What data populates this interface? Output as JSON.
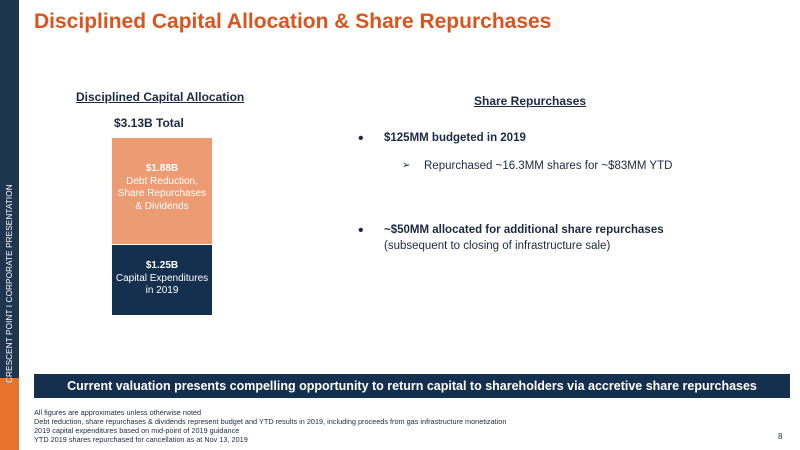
{
  "sidebar": {
    "text": "CRESCENT POINT   I   CORPORATE PRESENTATION",
    "colors": {
      "navy": "#1e3550",
      "orange": "#e8722a"
    }
  },
  "title": "Disciplined Capital Allocation & Share Repurchases",
  "left": {
    "heading": "Disciplined Capital Allocation",
    "total": "$3.13B Total",
    "bar_top": {
      "amount": "$1.88B",
      "line1": "Debt Reduction,",
      "line2": "Share Repurchases",
      "line3": "& Dividends",
      "color": "#ed9b72"
    },
    "bar_bottom": {
      "amount": "$1.25B",
      "line1": "Capital Expenditures",
      "line2": "in 2019",
      "color": "#15304f"
    }
  },
  "right": {
    "heading": "Share Repurchases",
    "bullet1": "$125MM budgeted in 2019",
    "sub_bullet": "Repurchased ~16.3MM shares for ~$83MM YTD",
    "bullet2": "~$50MM allocated for additional share repurchases",
    "bullet2_sub": "(subsequent to closing of infrastructure sale)"
  },
  "banner": "Current valuation presents compelling opportunity to return capital to shareholders via accretive share repurchases",
  "footnotes": [
    "All figures are approximates unless otherwise noted",
    "Debt reduction, share repurchases & dividends represent budget and YTD results in 2019, including proceeds from gas infrastructure monetization",
    "2019 capital expenditures based on mid-point of 2019 guidance",
    "YTD 2019 shares repurchased for cancellation as at Nov 13, 2019"
  ],
  "page_number": "8"
}
